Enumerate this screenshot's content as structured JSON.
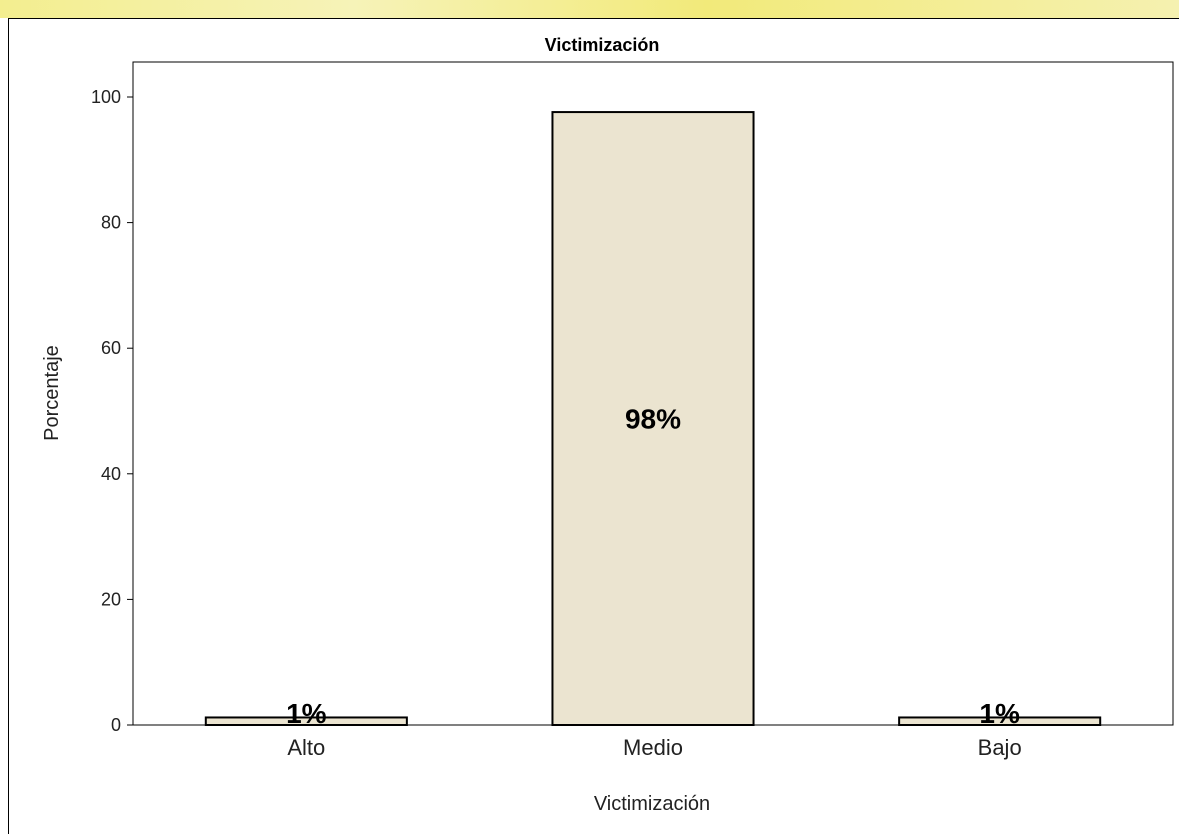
{
  "chart_data": {
    "type": "bar",
    "title": "Victimización",
    "xlabel": "Victimización",
    "ylabel": "Porcentaje",
    "categories": [
      "Alto",
      "Medio",
      "Bajo"
    ],
    "values": [
      1.2,
      97.6,
      1.2
    ],
    "data_labels": [
      "1%",
      "98%",
      "1%"
    ],
    "ylim": [
      0,
      100
    ],
    "yticks": [
      0,
      20,
      40,
      60,
      80,
      100
    ],
    "grid": false,
    "bar_color": "#ebe4d0",
    "bar_edge_color": "#000000"
  }
}
